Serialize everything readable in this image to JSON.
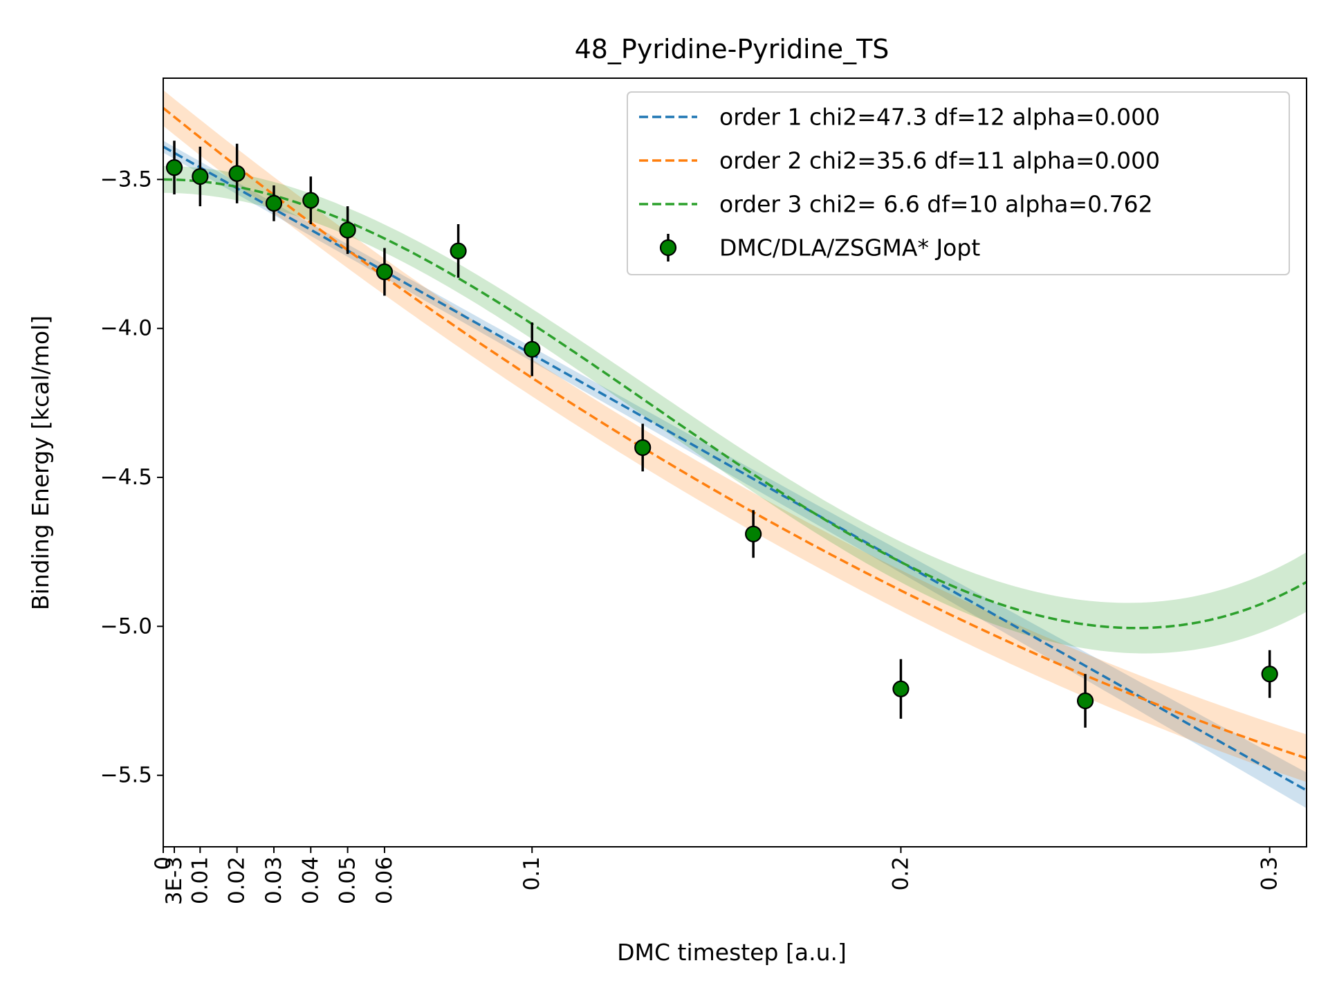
{
  "chart_data": {
    "type": "scatter",
    "title": "48_Pyridine-Pyridine_TS",
    "xlabel": "DMC timestep [a.u.]",
    "ylabel": "Binding Energy [kcal/mol]",
    "xlim": [
      0,
      0.31
    ],
    "ylim": [
      -5.74,
      -3.16
    ],
    "x_ticks": [
      {
        "value": 0,
        "label": "0"
      },
      {
        "value": 0.003,
        "label": "3E-3"
      },
      {
        "value": 0.01,
        "label": "0.01"
      },
      {
        "value": 0.02,
        "label": "0.02"
      },
      {
        "value": 0.03,
        "label": "0.03"
      },
      {
        "value": 0.04,
        "label": "0.04"
      },
      {
        "value": 0.05,
        "label": "0.05"
      },
      {
        "value": 0.06,
        "label": "0.06"
      },
      {
        "value": 0.1,
        "label": "0.1"
      },
      {
        "value": 0.2,
        "label": "0.2"
      },
      {
        "value": 0.3,
        "label": "0.3"
      }
    ],
    "y_ticks": [
      {
        "value": -3.5,
        "label": "−3.5"
      },
      {
        "value": -4.0,
        "label": "−4.0"
      },
      {
        "value": -4.5,
        "label": "−4.5"
      },
      {
        "value": -5.0,
        "label": "−5.0"
      },
      {
        "value": -5.5,
        "label": "−5.5"
      }
    ],
    "grid": false,
    "legend_position": "top-right",
    "data_series": {
      "name": "DMC/DLA/ZSGMA* Jopt",
      "color": "#008000",
      "x": [
        0.003,
        0.01,
        0.02,
        0.03,
        0.04,
        0.05,
        0.06,
        0.08,
        0.1,
        0.13,
        0.16,
        0.2,
        0.25,
        0.3
      ],
      "y": [
        -3.46,
        -3.49,
        -3.48,
        -3.58,
        -3.57,
        -3.67,
        -3.81,
        -3.74,
        -4.07,
        -4.4,
        -4.69,
        -5.21,
        -5.25,
        -5.16
      ],
      "yerr": [
        0.09,
        0.1,
        0.1,
        0.06,
        0.08,
        0.08,
        0.08,
        0.09,
        0.09,
        0.08,
        0.08,
        0.1,
        0.09,
        0.08
      ]
    },
    "fits": [
      {
        "name": "order 1 chi2=47.3 df=12 alpha=0.000",
        "color": "#1f77b4",
        "coeffs": [
          -3.39,
          -6.97
        ],
        "band": [
          0.02,
          0.06
        ]
      },
      {
        "name": "order 2 chi2=35.6 df=11 alpha=0.000",
        "color": "#ff7f0e",
        "coeffs": [
          -3.26,
          -10.02,
          9.61
        ],
        "band": [
          0.06,
          0.08
        ]
      },
      {
        "name": "order 3 chi2= 6.6 df=10 alpha=0.762",
        "color": "#2ca02c",
        "coeffs": [
          -3.5,
          0.0,
          -64.9,
          164.0
        ],
        "band": [
          0.045,
          0.1
        ]
      }
    ]
  }
}
